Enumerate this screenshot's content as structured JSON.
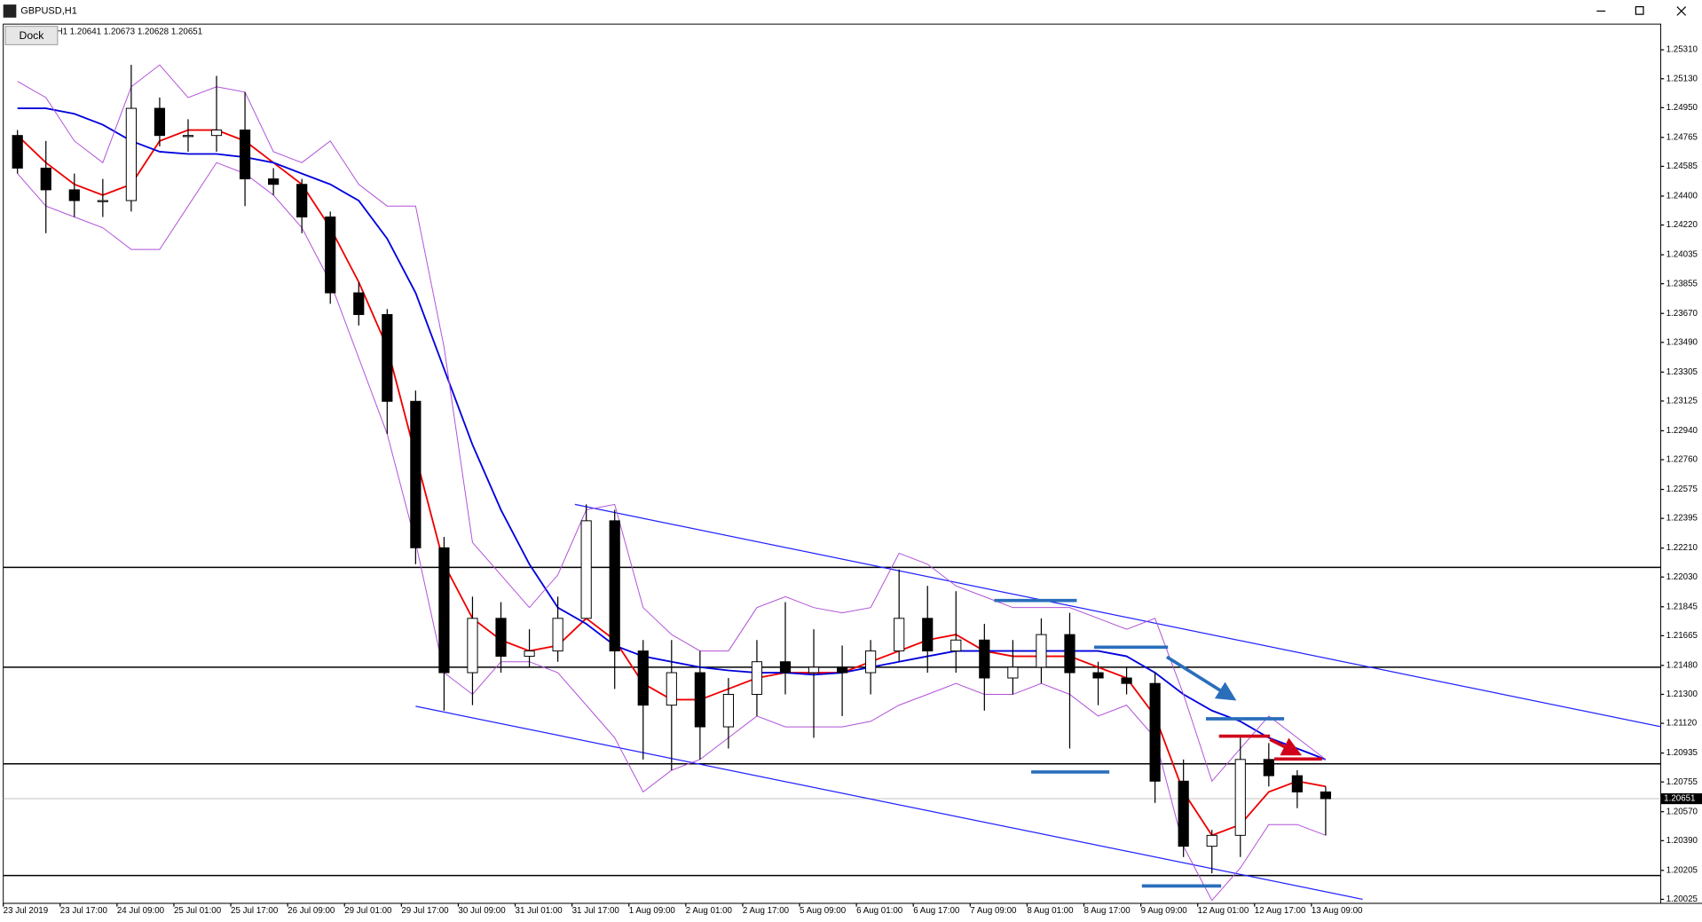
{
  "window": {
    "title": "GBPUSD,H1",
    "dock": "Dock",
    "info": "H1 1.20641 1.20673 1.20628 1.20651"
  },
  "chart_data": {
    "type": "candlestick",
    "categories": [
      "23 Jul 2019",
      null,
      "23 Jul 17:00",
      null,
      "24 Jul 09:00",
      null,
      "25 Jul 01:00",
      null,
      "25 Jul 17:00",
      null,
      "26 Jul 09:00",
      null,
      "29 Jul 01:00",
      null,
      "29 Jul 17:00",
      null,
      "30 Jul 09:00",
      null,
      "31 Jul 01:00",
      null,
      "31 Jul 17:00",
      null,
      "1 Aug 09:00",
      null,
      "2 Aug 01:00",
      null,
      "2 Aug 17:00",
      null,
      "5 Aug 09:00",
      null,
      "6 Aug 01:00",
      null,
      "6 Aug 17:00",
      null,
      "7 Aug 09:00",
      null,
      "8 Aug 01:00",
      null,
      "8 Aug 17:00",
      null,
      "9 Aug 09:00",
      null,
      "12 Aug 01:00",
      null,
      "12 Aug 17:00",
      null,
      "13 Aug 09:00"
    ],
    "open": [
      1.24777,
      1.24574,
      1.24439,
      1.24372,
      1.24372,
      1.24946,
      1.24777,
      1.24777,
      1.24811,
      1.24507,
      1.24473,
      1.2427,
      1.23798,
      1.23663,
      1.23123,
      1.22212,
      1.21435,
      1.21773,
      1.21537,
      1.2157,
      1.21773,
      1.2238,
      1.2157,
      1.21233,
      1.21435,
      1.21098,
      1.213,
      1.21503,
      1.21435,
      1.21469,
      1.21435,
      1.2157,
      1.21773,
      1.2157,
      1.21638,
      1.21402,
      1.21469,
      1.21672,
      1.21435,
      1.21402,
      1.21368,
      1.2076,
      1.20355,
      1.20423,
      1.20895,
      1.20794,
      1.20693
    ],
    "high": [
      1.24811,
      1.24743,
      1.2454,
      1.24507,
      1.25216,
      1.25013,
      1.24878,
      1.25148,
      1.25047,
      1.24574,
      1.24507,
      1.24304,
      1.23865,
      1.23697,
      1.2319,
      1.22279,
      1.21908,
      1.21874,
      1.21705,
      1.21908,
      1.22482,
      1.22448,
      1.21638,
      1.21638,
      1.2157,
      1.21402,
      1.21638,
      1.21874,
      1.21705,
      1.21604,
      1.21638,
      1.22077,
      1.21975,
      1.21942,
      1.21739,
      1.21638,
      1.21773,
      1.21807,
      1.21503,
      1.21469,
      1.21435,
      1.20895,
      1.20457,
      1.2103,
      1.20997,
      1.20828,
      1.20727
    ],
    "low": [
      1.2454,
      1.24169,
      1.2427,
      1.2427,
      1.24304,
      1.24709,
      1.24676,
      1.24676,
      1.24338,
      1.24406,
      1.24169,
      1.2373,
      1.23595,
      1.2292,
      1.2211,
      1.21199,
      1.21233,
      1.21435,
      1.21469,
      1.21503,
      1.21773,
      1.21334,
      1.20895,
      1.20828,
      1.20895,
      1.20963,
      1.21165,
      1.213,
      1.2103,
      1.21165,
      1.213,
      1.21503,
      1.21435,
      1.21435,
      1.21199,
      1.213,
      1.21368,
      1.20963,
      1.21233,
      1.213,
      1.20625,
      1.20288,
      1.20187,
      1.20288,
      1.20727,
      1.20592,
      1.20423
    ],
    "close": [
      1.24574,
      1.24439,
      1.24372,
      1.24372,
      1.24946,
      1.24777,
      1.24777,
      1.24811,
      1.24507,
      1.24473,
      1.2427,
      1.23798,
      1.23663,
      1.23123,
      1.22212,
      1.21435,
      1.21773,
      1.21537,
      1.2157,
      1.21773,
      1.2238,
      1.2157,
      1.21233,
      1.21435,
      1.21098,
      1.213,
      1.21503,
      1.21435,
      1.21469,
      1.21435,
      1.2157,
      1.21773,
      1.2157,
      1.21638,
      1.21402,
      1.21469,
      1.21672,
      1.21435,
      1.21402,
      1.21368,
      1.2076,
      1.20355,
      1.20423,
      1.20895,
      1.20794,
      1.20693,
      1.20651
    ],
    "up_color": "#ffffff",
    "down_color": "#000000",
    "wick_color": "#000000",
    "series": [
      {
        "color": "#ee0000",
        "values": [
          1.24777,
          1.24608,
          1.24473,
          1.24406,
          1.24473,
          1.24743,
          1.24811,
          1.24811,
          1.24743,
          1.24608,
          1.24473,
          1.24203,
          1.23865,
          1.2346,
          1.22785,
          1.2211,
          1.21773,
          1.21638,
          1.2157,
          1.21604,
          1.21773,
          1.21638,
          1.21368,
          1.21267,
          1.21267,
          1.21334,
          1.21402,
          1.21435,
          1.21435,
          1.21435,
          1.21503,
          1.2157,
          1.21638,
          1.21672,
          1.2157,
          1.21537,
          1.21537,
          1.21537,
          1.21469,
          1.21402,
          1.21165,
          1.20693,
          1.20423,
          1.2049,
          1.20693,
          1.2076,
          1.20727
        ]
      },
      {
        "color": "#0000dd",
        "values": [
          1.24946,
          1.24946,
          1.24912,
          1.24844,
          1.24743,
          1.24676,
          1.24662,
          1.24662,
          1.24642,
          1.24608,
          1.2454,
          1.24473,
          1.24372,
          1.24135,
          1.23798,
          1.23325,
          1.22853,
          1.22448,
          1.2211,
          1.2184,
          1.21739,
          1.21604,
          1.21537,
          1.21503,
          1.21469,
          1.21449,
          1.21435,
          1.21435,
          1.21422,
          1.21435,
          1.21469,
          1.21503,
          1.21537,
          1.2157,
          1.2157,
          1.2157,
          1.2157,
          1.2157,
          1.2157,
          1.21537,
          1.21435,
          1.213,
          1.21199,
          1.21132,
          1.2103,
          1.20963,
          1.20895
        ]
      },
      {
        "color": "#b050d8",
        "values": [
          1.25114,
          1.25013,
          1.24743,
          1.24608,
          1.2508,
          1.25216,
          1.25013,
          1.2508,
          1.25047,
          1.24676,
          1.24608,
          1.24743,
          1.24473,
          1.24338,
          1.24338,
          1.2346,
          1.22245,
          1.22043,
          1.2184,
          1.22043,
          1.22448,
          1.22482,
          1.2184,
          1.21672,
          1.2157,
          1.2157,
          1.2184,
          1.21908,
          1.2184,
          1.21807,
          1.2184,
          1.22178,
          1.2211,
          1.21975,
          1.21908,
          1.2184,
          1.2184,
          1.2184,
          1.21773,
          1.21705,
          1.21773,
          1.213,
          1.2076,
          1.20963,
          1.21165,
          1.2103,
          1.20895
        ]
      },
      {
        "color": "#b050d8",
        "values": [
          1.2454,
          1.24338,
          1.2427,
          1.24203,
          1.24068,
          1.24068,
          1.24338,
          1.24608,
          1.2454,
          1.24406,
          1.24203,
          1.23865,
          1.23393,
          1.2292,
          1.22245,
          1.21435,
          1.213,
          1.21503,
          1.21503,
          1.21435,
          1.21233,
          1.2103,
          1.20693,
          1.20828,
          1.20895,
          1.2103,
          1.21165,
          1.21098,
          1.21098,
          1.21098,
          1.21132,
          1.21233,
          1.213,
          1.21368,
          1.213,
          1.213,
          1.21368,
          1.213,
          1.21165,
          1.21233,
          1.2103,
          1.20355,
          1.20018,
          1.2022,
          1.2049,
          1.2049,
          1.20423
        ]
      }
    ],
    "hlines": [
      1.2209,
      1.21469,
      1.20868,
      1.20173
    ],
    "hline_color": "#000000",
    "last_price": 1.20651,
    "last_price_color": "#c0c0c0",
    "trendlines": [
      {
        "x": [
          19.6,
          57.8
        ],
        "y": [
          1.22482,
          1.21098
        ]
      },
      {
        "x": [
          14.0,
          47.3
        ],
        "y": [
          1.21226,
          1.20025
        ]
      }
    ],
    "trendline_color": "#2020ff",
    "ylim": [
      1.2,
      1.2547
    ],
    "yticks": [
      {
        "value": 1.2531,
        "label": "1.25310"
      },
      {
        "value": 1.2513,
        "label": "1.25130"
      },
      {
        "value": 1.2495,
        "label": "1.24950"
      },
      1.24765,
      1.24585,
      {
        "value": 1.244,
        "label": "1.24400"
      },
      {
        "value": 1.2422,
        "label": "1.24220"
      },
      1.24035,
      1.23855,
      {
        "value": 1.2367,
        "label": "1.23670"
      },
      {
        "value": 1.2349,
        "label": "1.23490"
      },
      1.23305,
      1.23125,
      {
        "value": 1.2294,
        "label": "1.22940"
      },
      {
        "value": 1.2276,
        "label": "1.22760"
      },
      1.22575,
      1.22395,
      {
        "value": 1.2221,
        "label": "1.22210"
      },
      {
        "value": 1.2203,
        "label": "1.22030"
      },
      1.21845,
      1.21665,
      {
        "value": 1.2148,
        "label": "1.21480"
      },
      {
        "value": 1.213,
        "label": "1.21300"
      },
      {
        "value": 1.2112,
        "label": "1.21120"
      },
      1.20935,
      1.20755,
      {
        "value": 1.2057,
        "label": "1.20570"
      },
      {
        "value": 1.2039,
        "label": "1.20390"
      },
      1.20205,
      1.20025
    ]
  }
}
